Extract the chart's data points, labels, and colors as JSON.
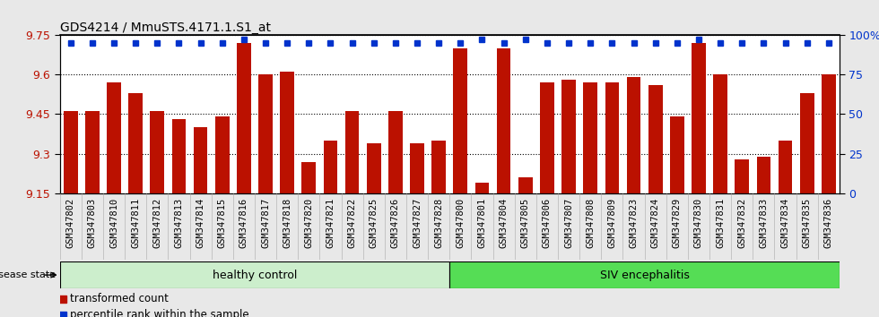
{
  "title": "GDS4214 / MmuSTS.4171.1.S1_at",
  "categories": [
    "GSM347802",
    "GSM347803",
    "GSM347810",
    "GSM347811",
    "GSM347812",
    "GSM347813",
    "GSM347814",
    "GSM347815",
    "GSM347816",
    "GSM347817",
    "GSM347818",
    "GSM347820",
    "GSM347821",
    "GSM347822",
    "GSM347825",
    "GSM347826",
    "GSM347827",
    "GSM347828",
    "GSM347800",
    "GSM347801",
    "GSM347804",
    "GSM347805",
    "GSM347806",
    "GSM347807",
    "GSM347808",
    "GSM347809",
    "GSM347823",
    "GSM347824",
    "GSM347829",
    "GSM347830",
    "GSM347831",
    "GSM347832",
    "GSM347833",
    "GSM347834",
    "GSM347835",
    "GSM347836"
  ],
  "bar_values": [
    9.46,
    9.46,
    9.57,
    9.53,
    9.46,
    9.43,
    9.4,
    9.44,
    9.72,
    9.6,
    9.61,
    9.27,
    9.35,
    9.46,
    9.34,
    9.46,
    9.34,
    9.35,
    9.7,
    9.19,
    9.7,
    9.21,
    9.57,
    9.58,
    9.57,
    9.57,
    9.59,
    9.56,
    9.44,
    9.72,
    9.6,
    9.28,
    9.29,
    9.35,
    9.53,
    9.6
  ],
  "percentile_values": [
    95,
    95,
    95,
    95,
    95,
    95,
    95,
    95,
    97,
    95,
    95,
    95,
    95,
    95,
    95,
    95,
    95,
    95,
    95,
    97,
    95,
    97,
    95,
    95,
    95,
    95,
    95,
    95,
    95,
    97,
    95,
    95,
    95,
    95,
    95,
    95
  ],
  "bar_color": "#bb1100",
  "percentile_color": "#0033cc",
  "ylim_left": [
    9.15,
    9.75
  ],
  "yticks_left": [
    9.15,
    9.3,
    9.45,
    9.6,
    9.75
  ],
  "yticks_right": [
    0,
    25,
    50,
    75,
    100
  ],
  "healthy_control_count": 18,
  "healthy_label": "healthy control",
  "siv_label": "SIV encephalitis",
  "disease_state_label": "disease state",
  "legend_bar_label": "transformed count",
  "legend_pct_label": "percentile rank within the sample",
  "bg_color": "#e8e8e8",
  "plot_bg": "#ffffff",
  "xtick_bg": "#d0d0d0",
  "healthy_color": "#cceecc",
  "siv_color": "#55dd55"
}
